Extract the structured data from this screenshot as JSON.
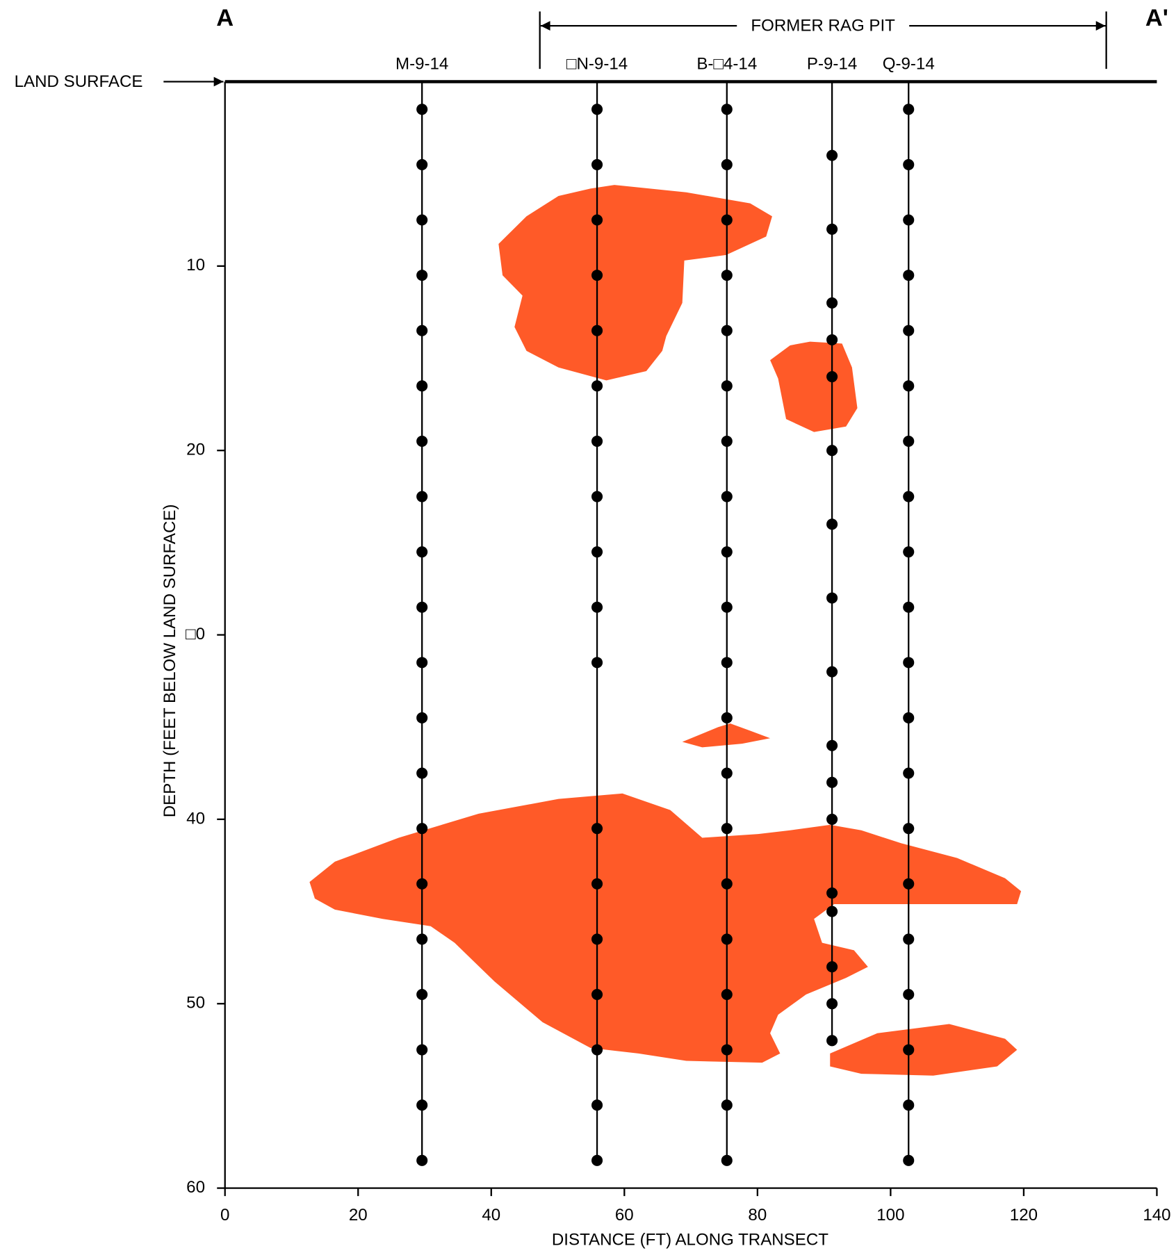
{
  "chart_data": {
    "type": "cross-section",
    "section_start": "A",
    "section_end": "A'",
    "surface_label": "LAND SURFACE",
    "xlabel": "DISTANCE (FT) ALONG TRANSECT",
    "ylabel": "DEPTH (FEET BELOW LAND SURFACE)",
    "xlim": [
      0,
      140
    ],
    "xticks": [
      0,
      20,
      40,
      60,
      80,
      100,
      120,
      140
    ],
    "ylim": [
      0,
      60
    ],
    "yticks": [
      10,
      20,
      {
        "value": 30,
        "label": "□0"
      },
      40,
      50,
      60
    ],
    "y_inverted": true,
    "rag_pit": {
      "label": "FORMER RAG PIT",
      "x_range": [
        47.3,
        132.4
      ]
    },
    "marker_color": "#000000",
    "plume_color": "#ff5a28",
    "borings": [
      {
        "name": "M-9-14",
        "x": 29.6,
        "depths": [
          1.5,
          4.5,
          7.5,
          10.5,
          13.5,
          16.5,
          19.5,
          22.5,
          25.5,
          28.5,
          31.5,
          34.5,
          37.5,
          40.5,
          43.5,
          46.5,
          49.5,
          52.5,
          55.5,
          58.5
        ]
      },
      {
        "name": "□N-9-14",
        "x": 55.9,
        "depths": [
          1.5,
          4.5,
          7.5,
          10.5,
          13.5,
          16.5,
          19.5,
          22.5,
          25.5,
          28.5,
          31.5,
          40.5,
          43.5,
          46.5,
          49.5,
          52.5,
          55.5,
          58.5
        ]
      },
      {
        "name": "B-□4-14",
        "x": 75.4,
        "depths": [
          1.5,
          4.5,
          7.5,
          10.5,
          13.5,
          16.5,
          19.5,
          22.5,
          25.5,
          28.5,
          31.5,
          34.5,
          37.5,
          40.5,
          43.5,
          46.5,
          49.5,
          52.5,
          55.5,
          58.5
        ]
      },
      {
        "name": "P-9-14",
        "x": 91.2,
        "depths": [
          4,
          8,
          12,
          14,
          16,
          20,
          24,
          28,
          32,
          36,
          38,
          40,
          44,
          45,
          48,
          50,
          52
        ]
      },
      {
        "name": "Q-9-14",
        "x": 102.7,
        "depths": [
          1.5,
          4.5,
          7.5,
          10.5,
          13.5,
          16.5,
          19.5,
          22.5,
          25.5,
          28.5,
          31.5,
          34.5,
          37.5,
          40.5,
          43.5,
          46.5,
          49.5,
          52.5,
          55.5,
          58.5
        ]
      }
    ],
    "plumes": [
      {
        "x": [
          58.5,
          69.3,
          78.9,
          82.2,
          81.3,
          75.3,
          69.0,
          68.7,
          66.3,
          65.7,
          63.3,
          57.3,
          50.1,
          45.3,
          43.5,
          44.7,
          41.7,
          41.1,
          45.3,
          50.1,
          54.9
        ],
        "y": [
          5.6,
          6.0,
          6.6,
          7.3,
          8.4,
          9.4,
          9.7,
          12.0,
          13.8,
          14.6,
          15.7,
          16.2,
          15.5,
          14.6,
          13.3,
          11.6,
          10.5,
          8.8,
          7.3,
          6.2,
          5.8
        ]
      },
      {
        "x": [
          87.9,
          92.7,
          94.2,
          95.0,
          93.3,
          88.5,
          84.3,
          83.1,
          81.9,
          84.9
        ],
        "y": [
          14.1,
          14.2,
          15.5,
          17.7,
          18.7,
          19.0,
          18.3,
          16.1,
          15.1,
          14.3
        ]
      },
      {
        "x": [
          68.7,
          74.1,
          75.9,
          78.9,
          81.9,
          77.7,
          71.7
        ],
        "y": [
          35.8,
          35.0,
          34.8,
          35.2,
          35.6,
          35.9,
          36.1
        ]
      },
      {
        "x": [
          12.7,
          16.5,
          26.1,
          38.1,
          50.1,
          59.7,
          66.9,
          71.7,
          80.1,
          84.9,
          90.9,
          95.6,
          101.6,
          110.0,
          117.2,
          119.6,
          119.0,
          102.8,
          91.5,
          88.5,
          89.7,
          94.5,
          96.6,
          93.3,
          87.3,
          83.1,
          81.9,
          83.4,
          80.7,
          69.3,
          62.1,
          54.9,
          47.7,
          40.5,
          34.5,
          30.9,
          23.7,
          16.5,
          13.5
        ],
        "y": [
          43.4,
          42.3,
          41.0,
          39.7,
          38.9,
          38.6,
          39.5,
          41.0,
          40.8,
          40.6,
          40.3,
          40.6,
          41.3,
          42.1,
          43.2,
          43.9,
          44.6,
          44.6,
          44.6,
          45.4,
          46.7,
          47.1,
          48.0,
          48.6,
          49.5,
          50.6,
          51.6,
          52.7,
          53.2,
          53.1,
          52.7,
          52.4,
          51.0,
          48.8,
          46.7,
          45.8,
          45.4,
          44.9,
          44.3
        ]
      },
      {
        "x": [
          90.9,
          98.0,
          108.8,
          117.2,
          119.0,
          116.0,
          106.4,
          95.6,
          90.9
        ],
        "y": [
          52.7,
          51.6,
          51.1,
          51.9,
          52.5,
          53.4,
          53.9,
          53.8,
          53.4
        ]
      }
    ]
  }
}
